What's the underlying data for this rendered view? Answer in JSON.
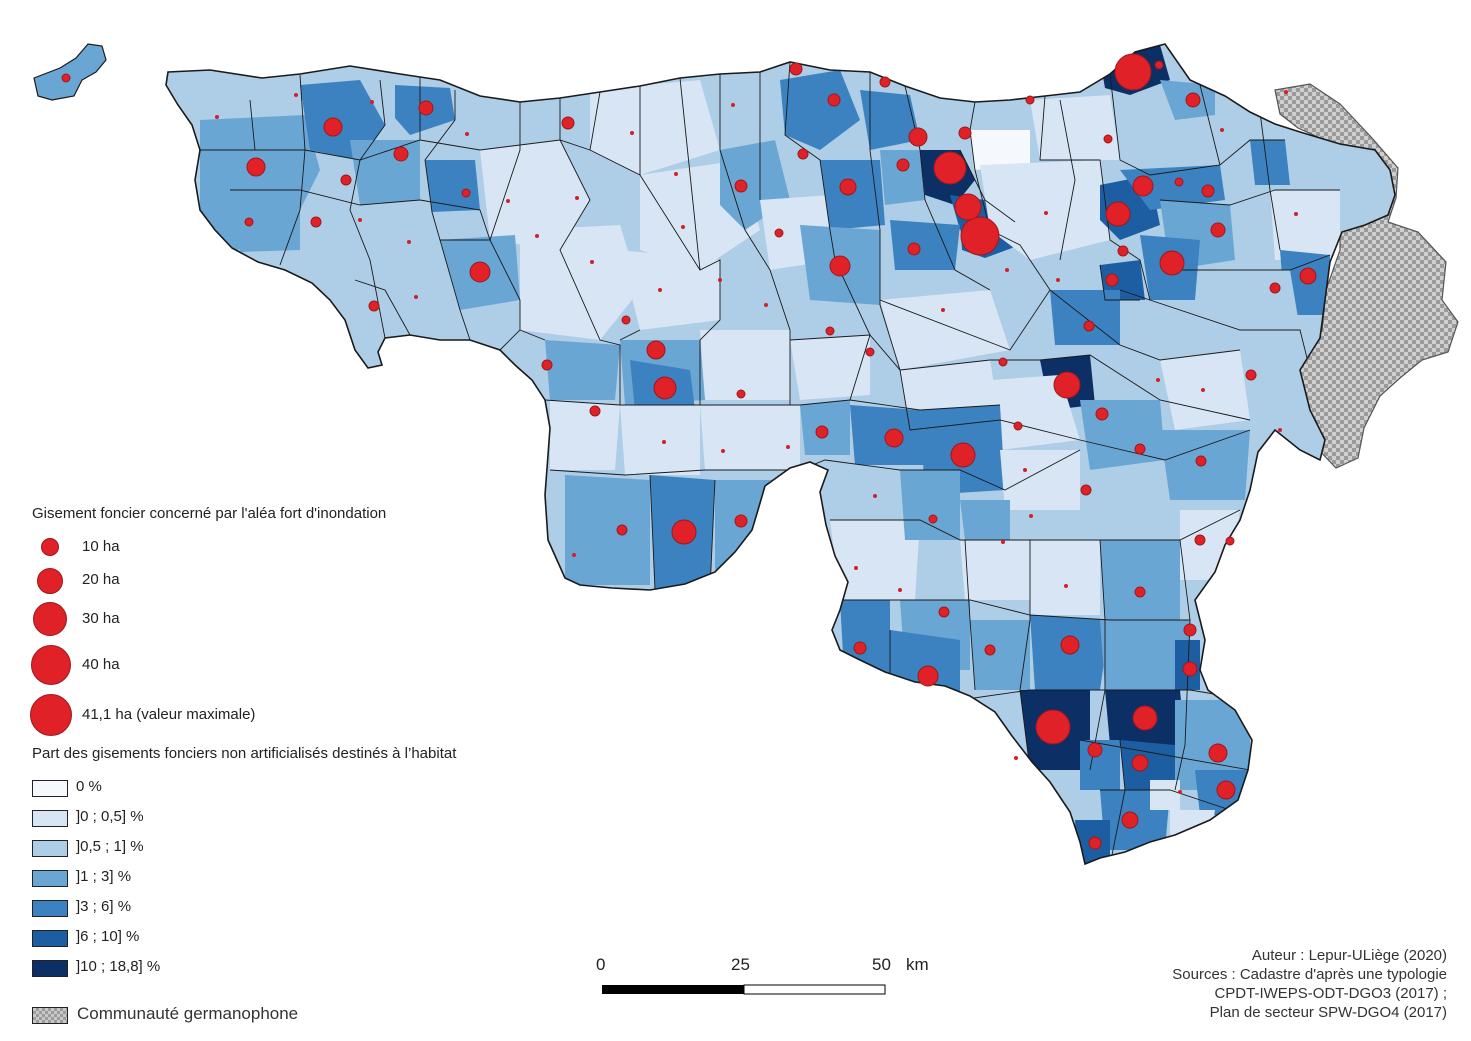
{
  "colors": {
    "c0": "#f5f8fd",
    "c1": "#d7e5f4",
    "c2": "#aecde6",
    "c3": "#6aa6d3",
    "c4": "#3c82c0",
    "c5": "#1d5ea3",
    "c6": "#0c2f66",
    "circle": "#e02127",
    "germanophone": "#c9c9c9"
  },
  "legend_circles": {
    "title": "Gisement foncier concerné par l'aléa fort d'inondation",
    "items": [
      {
        "value": 10,
        "label": "10 ha"
      },
      {
        "value": 20,
        "label": "20 ha"
      },
      {
        "value": 30,
        "label": "30 ha"
      },
      {
        "value": 40,
        "label": "40 ha"
      },
      {
        "value": 41.1,
        "label": "41,1 ha (valeur maximale)"
      }
    ]
  },
  "legend_classes": {
    "title": "Part des gisements fonciers non artificialisés destinés à l’habitat",
    "items": [
      {
        "label": "0 %",
        "color_key": "c0"
      },
      {
        "label": "]0 ; 0,5] %",
        "color_key": "c1"
      },
      {
        "label": "]0,5 ; 1] %",
        "color_key": "c2"
      },
      {
        "label": "]1 ; 3] %",
        "color_key": "c3"
      },
      {
        "label": "]3 ; 6] %",
        "color_key": "c4"
      },
      {
        "label": "]6 ; 10] %",
        "color_key": "c5"
      },
      {
        "label": "]10 ; 18,8] %",
        "color_key": "c6"
      }
    ]
  },
  "germanophone_label": "Communauté germanophone",
  "scale": {
    "labels": [
      "0",
      "25",
      "50"
    ],
    "unit": "km"
  },
  "credits": {
    "line1": "Auteur : Lepur-ULiège (2020)",
    "line2": "Sources : Cadastre d'après une typologie",
    "line3": "CPDT-IWEPS-ODT-DGO3 (2017) ;",
    "line4": "Plan de secteur SPW-DGO4 (2017)"
  }
}
